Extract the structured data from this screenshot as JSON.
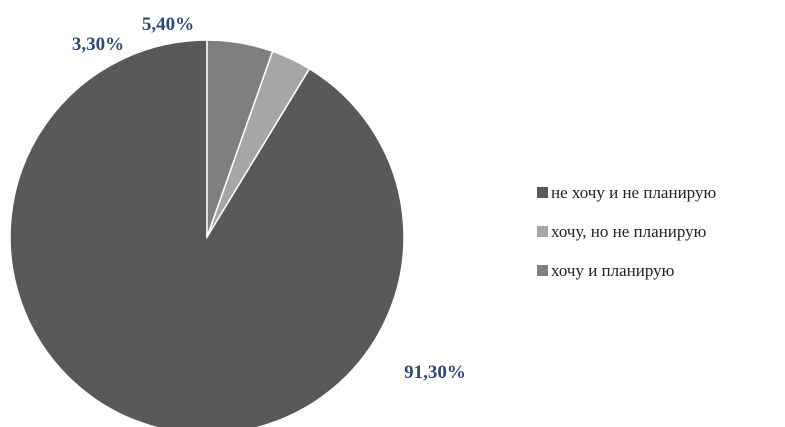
{
  "chart_data": {
    "type": "pie",
    "slices": [
      {
        "label": "не хочу и не планирую",
        "value": 91.3,
        "display": "91,30%",
        "color": "#595959"
      },
      {
        "label": "хочу, но не планирую",
        "value": 3.3,
        "display": "3,30%",
        "color": "#a6a6a6"
      },
      {
        "label": "хочу и планирую",
        "value": 5.4,
        "display": "5,40%",
        "color": "#7f7f7f"
      }
    ],
    "start_angle_deg": 0,
    "direction": "counterclockwise",
    "legend": "right",
    "label_color": "#2d4a73"
  }
}
